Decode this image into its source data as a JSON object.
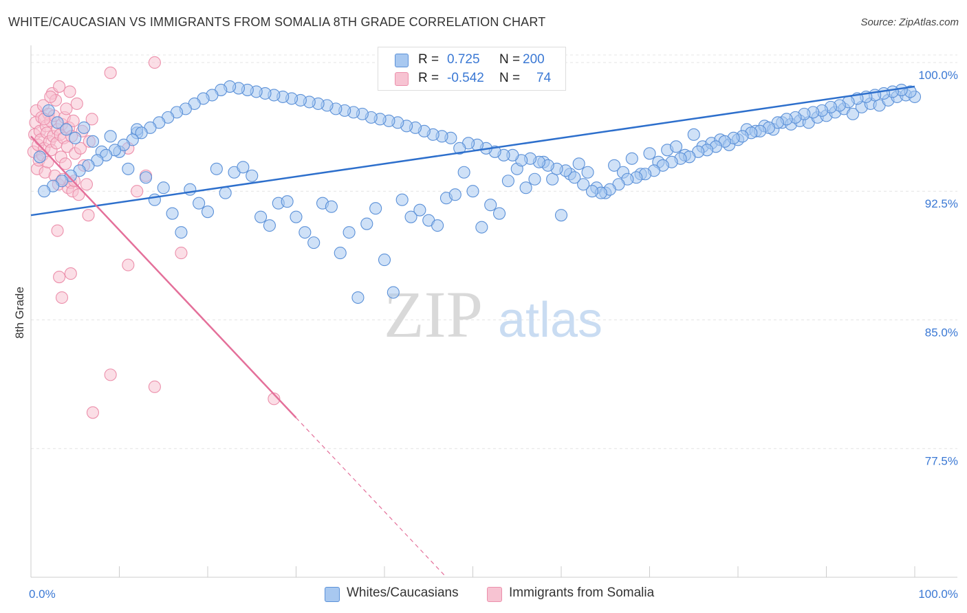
{
  "title": "WHITE/CAUCASIAN VS IMMIGRANTS FROM SOMALIA 8TH GRADE CORRELATION CHART",
  "source": "Source: ZipAtlas.com",
  "watermark": {
    "zip": "ZIP",
    "atlas": "atlas"
  },
  "legend": {
    "rows": [
      {
        "r_label": "R =",
        "r_value": "0.725",
        "n_label": "N =",
        "n_value": "200",
        "color": "#a8c8f0"
      },
      {
        "r_label": "R =",
        "r_value": "-0.542",
        "n_label": "N =",
        "n_value": "74",
        "color": "#f5b7c8"
      }
    ]
  },
  "bottom_legend": {
    "blue_label": "Whites/Caucasians",
    "pink_label": "Immigrants from Somalia"
  },
  "colors": {
    "blue_fill": "#a8c8f0",
    "blue_stroke": "#5a90d8",
    "blue_line": "#2d6fcc",
    "pink_fill": "#f7c3d2",
    "pink_stroke": "#ec8fab",
    "pink_line": "#e4709a",
    "tick_label": "#3a78d4",
    "grid": "#e4e4e4"
  },
  "chart_data": {
    "type": "scatter",
    "ylabel": "8th Grade",
    "xlabel": "",
    "xlim": [
      0,
      100
    ],
    "ylim": [
      70,
      101
    ],
    "x_tick_labels": [
      {
        "value": 0,
        "label": "0.0%"
      },
      {
        "value": 100,
        "label": "100.0%"
      }
    ],
    "y_ticks": [
      {
        "value": 100,
        "label": "100.0%"
      },
      {
        "value": 92.5,
        "label": "92.5%"
      },
      {
        "value": 85,
        "label": "85.0%"
      },
      {
        "value": 77.5,
        "label": "77.5%"
      }
    ],
    "grid": true,
    "series": [
      {
        "name": "Whites/Caucasians",
        "trend": {
          "x0": 0,
          "y0": 91.1,
          "x1": 100,
          "y1": 98.6,
          "solid_to": 100
        },
        "points": [
          [
            1,
            94.5
          ],
          [
            2,
            97.2
          ],
          [
            3,
            96.5
          ],
          [
            4,
            96.1
          ],
          [
            5,
            95.6
          ],
          [
            6,
            96.2
          ],
          [
            7,
            95.4
          ],
          [
            8,
            94.8
          ],
          [
            9,
            95.7
          ],
          [
            10,
            94.8
          ],
          [
            11,
            93.8
          ],
          [
            12,
            95.9
          ],
          [
            12,
            96.1
          ],
          [
            13,
            93.3
          ],
          [
            14,
            92.0
          ],
          [
            15,
            92.7
          ],
          [
            16,
            91.2
          ],
          [
            17,
            90.1
          ],
          [
            18,
            92.6
          ],
          [
            19,
            91.8
          ],
          [
            20,
            91.3
          ],
          [
            21,
            93.8
          ],
          [
            22,
            92.4
          ],
          [
            23,
            93.6
          ],
          [
            24,
            93.9
          ],
          [
            25,
            93.4
          ],
          [
            26,
            91.0
          ],
          [
            27,
            90.5
          ],
          [
            28,
            91.8
          ],
          [
            29,
            91.9
          ],
          [
            30,
            91.0
          ],
          [
            31,
            90.1
          ],
          [
            32,
            89.5
          ],
          [
            33,
            91.8
          ],
          [
            34,
            91.6
          ],
          [
            35,
            88.9
          ],
          [
            36,
            90.1
          ],
          [
            37,
            86.3
          ],
          [
            38,
            90.6
          ],
          [
            39,
            91.5
          ],
          [
            40,
            88.5
          ],
          [
            41,
            86.6
          ],
          [
            42,
            92.0
          ],
          [
            43,
            91.0
          ],
          [
            44,
            91.4
          ],
          [
            45,
            90.8
          ],
          [
            46,
            90.5
          ],
          [
            47,
            92.1
          ],
          [
            48,
            92.3
          ],
          [
            49,
            93.6
          ],
          [
            50,
            92.5
          ],
          [
            51,
            90.4
          ],
          [
            52,
            91.7
          ],
          [
            53,
            91.2
          ],
          [
            54,
            93.1
          ],
          [
            55,
            93.8
          ],
          [
            56,
            92.7
          ],
          [
            57,
            93.2
          ],
          [
            58,
            94.2
          ],
          [
            59,
            93.2
          ],
          [
            60,
            91.1
          ],
          [
            61,
            93.5
          ],
          [
            62,
            94.1
          ],
          [
            63,
            93.6
          ],
          [
            64,
            92.7
          ],
          [
            65,
            92.4
          ],
          [
            66,
            94.0
          ],
          [
            67,
            93.6
          ],
          [
            68,
            94.4
          ],
          [
            69,
            93.5
          ],
          [
            70,
            94.7
          ],
          [
            71,
            94.2
          ],
          [
            72,
            94.9
          ],
          [
            73,
            95.1
          ],
          [
            74,
            94.6
          ],
          [
            75,
            95.8
          ],
          [
            76,
            95.1
          ],
          [
            77,
            95.3
          ],
          [
            78,
            95.5
          ],
          [
            79,
            95.2
          ],
          [
            80,
            95.5
          ],
          [
            81,
            96.1
          ],
          [
            82,
            96.0
          ],
          [
            83,
            96.3
          ],
          [
            84,
            96.1
          ],
          [
            85,
            96.5
          ],
          [
            86,
            96.4
          ],
          [
            87,
            96.6
          ],
          [
            88,
            96.5
          ],
          [
            89,
            96.8
          ],
          [
            90,
            96.9
          ],
          [
            91,
            97.1
          ],
          [
            92,
            97.3
          ],
          [
            93,
            97.0
          ],
          [
            94,
            97.4
          ],
          [
            95,
            97.6
          ],
          [
            96,
            97.5
          ],
          [
            97,
            97.8
          ],
          [
            98,
            98.0
          ],
          [
            99,
            98.1
          ],
          [
            100,
            98.0
          ],
          [
            99.5,
            98.3
          ],
          [
            98.5,
            98.4
          ],
          [
            97.5,
            98.3
          ],
          [
            96.5,
            98.2
          ],
          [
            95.5,
            98.1
          ],
          [
            94.5,
            98.0
          ],
          [
            93.5,
            97.9
          ],
          [
            92.5,
            97.7
          ],
          [
            91.5,
            97.5
          ],
          [
            90.5,
            97.4
          ],
          [
            89.5,
            97.2
          ],
          [
            88.5,
            97.1
          ],
          [
            87.5,
            97.0
          ],
          [
            86.5,
            96.8
          ],
          [
            85.5,
            96.7
          ],
          [
            84.5,
            96.5
          ],
          [
            83.5,
            96.2
          ],
          [
            82.5,
            96.0
          ],
          [
            81.5,
            95.9
          ],
          [
            80.5,
            95.7
          ],
          [
            79.5,
            95.6
          ],
          [
            78.5,
            95.4
          ],
          [
            77.5,
            95.1
          ],
          [
            76.5,
            94.9
          ],
          [
            75.5,
            94.8
          ],
          [
            74.5,
            94.5
          ],
          [
            73.5,
            94.4
          ],
          [
            72.5,
            94.2
          ],
          [
            71.5,
            94.0
          ],
          [
            70.5,
            93.7
          ],
          [
            69.5,
            93.5
          ],
          [
            68.5,
            93.3
          ],
          [
            67.5,
            93.2
          ],
          [
            66.5,
            92.9
          ],
          [
            65.5,
            92.6
          ],
          [
            64.5,
            92.4
          ],
          [
            63.5,
            92.5
          ],
          [
            62.5,
            92.9
          ],
          [
            61.5,
            93.3
          ],
          [
            60.5,
            93.7
          ],
          [
            59.5,
            93.8
          ],
          [
            58.5,
            94.0
          ],
          [
            57.5,
            94.2
          ],
          [
            56.5,
            94.4
          ],
          [
            55.5,
            94.3
          ],
          [
            54.5,
            94.6
          ],
          [
            53.5,
            94.6
          ],
          [
            52.5,
            94.8
          ],
          [
            51.5,
            95.0
          ],
          [
            50.5,
            95.2
          ],
          [
            49.5,
            95.3
          ],
          [
            48.5,
            95.0
          ],
          [
            47.5,
            95.6
          ],
          [
            46.5,
            95.7
          ],
          [
            45.5,
            95.8
          ],
          [
            44.5,
            96.0
          ],
          [
            43.5,
            96.2
          ],
          [
            42.5,
            96.3
          ],
          [
            41.5,
            96.5
          ],
          [
            40.5,
            96.6
          ],
          [
            39.5,
            96.7
          ],
          [
            38.5,
            96.8
          ],
          [
            37.5,
            97.0
          ],
          [
            36.5,
            97.1
          ],
          [
            35.5,
            97.2
          ],
          [
            34.5,
            97.3
          ],
          [
            33.5,
            97.5
          ],
          [
            32.5,
            97.6
          ],
          [
            31.5,
            97.7
          ],
          [
            30.5,
            97.8
          ],
          [
            29.5,
            97.9
          ],
          [
            28.5,
            98.0
          ],
          [
            27.5,
            98.1
          ],
          [
            26.5,
            98.2
          ],
          [
            25.5,
            98.3
          ],
          [
            24.5,
            98.4
          ],
          [
            23.5,
            98.5
          ],
          [
            22.5,
            98.6
          ],
          [
            21.5,
            98.4
          ],
          [
            20.5,
            98.1
          ],
          [
            19.5,
            97.9
          ],
          [
            18.5,
            97.6
          ],
          [
            17.5,
            97.3
          ],
          [
            16.5,
            97.1
          ],
          [
            15.5,
            96.8
          ],
          [
            14.5,
            96.5
          ],
          [
            13.5,
            96.2
          ],
          [
            12.5,
            95.9
          ],
          [
            11.5,
            95.5
          ],
          [
            10.5,
            95.2
          ],
          [
            9.5,
            94.9
          ],
          [
            8.5,
            94.6
          ],
          [
            7.5,
            94.3
          ],
          [
            6.5,
            94.0
          ],
          [
            5.5,
            93.7
          ],
          [
            4.5,
            93.4
          ],
          [
            3.5,
            93.1
          ],
          [
            2.5,
            92.8
          ],
          [
            1.5,
            92.5
          ]
        ]
      },
      {
        "name": "Immigrants from Somalia",
        "trend": {
          "x0": 0,
          "y0": 95.7,
          "x1": 47,
          "y1": 70.0,
          "solid_to": 30
        },
        "points": [
          [
            0.3,
            94.8
          ],
          [
            0.4,
            95.8
          ],
          [
            0.5,
            96.5
          ],
          [
            0.6,
            97.2
          ],
          [
            0.7,
            93.8
          ],
          [
            0.8,
            95.2
          ],
          [
            0.9,
            94.3
          ],
          [
            1.0,
            96.0
          ],
          [
            1.1,
            95.5
          ],
          [
            1.2,
            96.8
          ],
          [
            1.3,
            94.6
          ],
          [
            1.4,
            97.5
          ],
          [
            1.5,
            95.0
          ],
          [
            1.6,
            93.6
          ],
          [
            1.7,
            96.3
          ],
          [
            1.8,
            95.9
          ],
          [
            1.9,
            94.2
          ],
          [
            2.0,
            97.0
          ],
          [
            2.1,
            95.4
          ],
          [
            2.2,
            96.6
          ],
          [
            2.3,
            94.9
          ],
          [
            2.4,
            98.2
          ],
          [
            2.5,
            95.7
          ],
          [
            2.6,
            96.9
          ],
          [
            2.7,
            93.4
          ],
          [
            2.8,
            97.8
          ],
          [
            2.9,
            95.3
          ],
          [
            3.0,
            96.1
          ],
          [
            3.1,
            92.9
          ],
          [
            3.2,
            98.6
          ],
          [
            3.3,
            95.8
          ],
          [
            3.4,
            94.5
          ],
          [
            3.5,
            96.4
          ],
          [
            3.6,
            93.2
          ],
          [
            3.7,
            95.6
          ],
          [
            3.8,
            96.8
          ],
          [
            3.9,
            94.1
          ],
          [
            4.0,
            97.3
          ],
          [
            4.1,
            95.1
          ],
          [
            4.2,
            92.7
          ],
          [
            4.3,
            96.2
          ],
          [
            4.4,
            98.3
          ],
          [
            4.5,
            93.0
          ],
          [
            4.6,
            95.7
          ],
          [
            4.7,
            92.5
          ],
          [
            4.8,
            96.6
          ],
          [
            4.9,
            93.1
          ],
          [
            5.0,
            94.7
          ],
          [
            5.2,
            97.6
          ],
          [
            5.4,
            92.3
          ],
          [
            5.6,
            95.0
          ],
          [
            5.8,
            96.0
          ],
          [
            6.0,
            94.0
          ],
          [
            6.3,
            92.9
          ],
          [
            6.6,
            95.4
          ],
          [
            6.9,
            96.7
          ],
          [
            3.0,
            90.2
          ],
          [
            3.2,
            87.5
          ],
          [
            3.5,
            86.3
          ],
          [
            4.5,
            87.7
          ],
          [
            6.5,
            91.1
          ],
          [
            9.0,
            81.8
          ],
          [
            11.0,
            88.2
          ],
          [
            14.0,
            81.1
          ],
          [
            7.0,
            79.6
          ],
          [
            14.0,
            100.0
          ],
          [
            9.0,
            99.4
          ],
          [
            11.0,
            95.0
          ],
          [
            12.0,
            92.5
          ],
          [
            17.0,
            88.9
          ],
          [
            13.0,
            93.4
          ],
          [
            27.5,
            80.4
          ],
          [
            2.2,
            98.0
          ],
          [
            1.5,
            96.7
          ]
        ]
      }
    ]
  }
}
